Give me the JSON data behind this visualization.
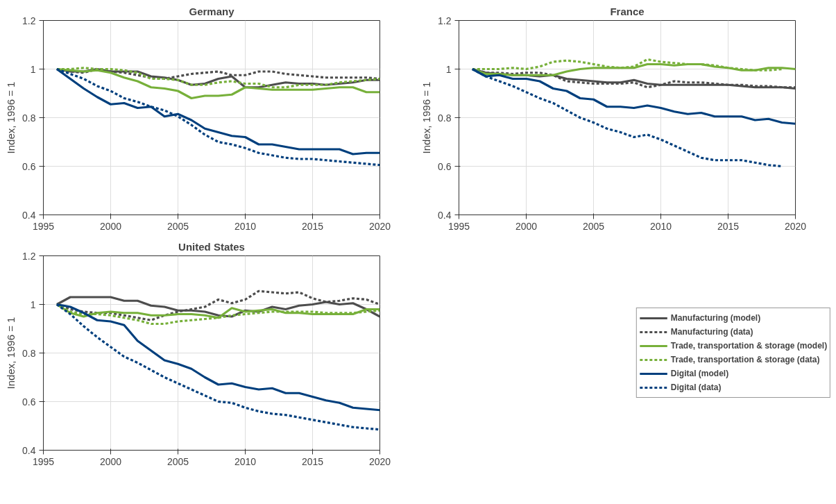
{
  "chart_data": [
    {
      "type": "line",
      "title": "Germany",
      "ylabel": "Index, 1996 = 1",
      "x": [
        1996,
        1997,
        1998,
        1999,
        2000,
        2001,
        2002,
        2003,
        2004,
        2005,
        2006,
        2007,
        2008,
        2009,
        2010,
        2011,
        2012,
        2013,
        2014,
        2015,
        2016,
        2017,
        2018,
        2019,
        2020
      ],
      "xlim": [
        1995,
        2020
      ],
      "ylim": [
        0.4,
        1.2
      ],
      "xticks": [
        1995,
        2000,
        2005,
        2010,
        2015,
        2020
      ],
      "yticks": [
        0.4,
        0.6,
        0.8,
        1,
        1.2
      ],
      "grid": true,
      "series": [
        {
          "color": "#4d4d4d",
          "line_style": "solid",
          "values": [
            1,
            0.99,
            0.99,
            1.0,
            0.99,
            0.99,
            0.99,
            0.97,
            0.965,
            0.955,
            0.935,
            0.94,
            0.96,
            0.97,
            0.925,
            0.925,
            0.935,
            0.945,
            0.94,
            0.94,
            0.935,
            0.94,
            0.945,
            0.955,
            0.955
          ]
        },
        {
          "color": "#4d4d4d",
          "line_style": "dotted",
          "values": [
            1,
            0.99,
            0.985,
            1.0,
            0.99,
            0.985,
            0.975,
            0.965,
            0.96,
            0.97,
            0.98,
            0.985,
            0.99,
            0.975,
            0.975,
            0.99,
            0.99,
            0.98,
            0.975,
            0.97,
            0.965,
            0.965,
            0.965,
            0.965,
            0.96
          ]
        },
        {
          "color": "#77b03a",
          "line_style": "solid",
          "values": [
            1,
            0.995,
            0.99,
            0.995,
            0.985,
            0.965,
            0.95,
            0.925,
            0.92,
            0.91,
            0.88,
            0.89,
            0.89,
            0.895,
            0.925,
            0.92,
            0.915,
            0.915,
            0.915,
            0.915,
            0.92,
            0.925,
            0.925,
            0.905,
            0.905
          ]
        },
        {
          "color": "#77b03a",
          "line_style": "dotted",
          "values": [
            1,
            1.0,
            1.005,
            1.0,
            1.0,
            0.995,
            0.985,
            0.96,
            0.96,
            0.955,
            0.935,
            0.935,
            0.945,
            0.95,
            0.94,
            0.94,
            0.925,
            0.925,
            0.935,
            0.935,
            0.935,
            0.945,
            0.95,
            0.955,
            0.96
          ]
        },
        {
          "color": "#003f7d",
          "line_style": "solid",
          "values": [
            1,
            0.96,
            0.92,
            0.885,
            0.855,
            0.86,
            0.84,
            0.845,
            0.805,
            0.815,
            0.79,
            0.755,
            0.74,
            0.725,
            0.72,
            0.69,
            0.69,
            0.68,
            0.67,
            0.67,
            0.67,
            0.67,
            0.65,
            0.655,
            0.655
          ]
        },
        {
          "color": "#003f7d",
          "line_style": "dotted",
          "values": [
            1,
            0.98,
            0.96,
            0.93,
            0.91,
            0.88,
            0.865,
            0.845,
            0.83,
            0.805,
            0.77,
            0.73,
            0.7,
            0.69,
            0.675,
            0.655,
            0.645,
            0.635,
            0.63,
            0.63,
            0.625,
            0.62,
            0.615,
            0.61,
            0.605
          ]
        }
      ]
    },
    {
      "type": "line",
      "title": "France",
      "ylabel": "Index, 1996 = 1",
      "x": [
        1996,
        1997,
        1998,
        1999,
        2000,
        2001,
        2002,
        2003,
        2004,
        2005,
        2006,
        2007,
        2008,
        2009,
        2010,
        2011,
        2012,
        2013,
        2014,
        2015,
        2016,
        2017,
        2018,
        2019,
        2020
      ],
      "xlim": [
        1995,
        2020
      ],
      "ylim": [
        0.4,
        1.2
      ],
      "xticks": [
        1995,
        2000,
        2005,
        2010,
        2015,
        2020
      ],
      "yticks": [
        0.4,
        0.6,
        0.8,
        1,
        1.2
      ],
      "grid": true,
      "series": [
        {
          "color": "#4d4d4d",
          "line_style": "solid",
          "values": [
            1,
            0.985,
            0.98,
            0.975,
            0.975,
            0.97,
            0.975,
            0.96,
            0.955,
            0.95,
            0.945,
            0.945,
            0.955,
            0.94,
            0.935,
            0.935,
            0.935,
            0.935,
            0.935,
            0.935,
            0.93,
            0.925,
            0.925,
            0.925,
            0.92
          ]
        },
        {
          "color": "#4d4d4d",
          "line_style": "dotted",
          "values": [
            1,
            0.985,
            0.985,
            0.98,
            0.985,
            0.985,
            0.975,
            0.95,
            0.945,
            0.94,
            0.94,
            0.94,
            0.945,
            0.925,
            0.935,
            0.95,
            0.945,
            0.945,
            0.94,
            0.935,
            0.935,
            0.93,
            0.93,
            0.925,
            0.925
          ]
        },
        {
          "color": "#77b03a",
          "line_style": "solid",
          "values": [
            1,
            0.98,
            0.98,
            0.975,
            0.975,
            0.975,
            0.975,
            0.99,
            1.0,
            1.005,
            1.005,
            1.005,
            1.005,
            1.02,
            1.02,
            1.015,
            1.02,
            1.02,
            1.01,
            1.005,
            0.995,
            0.995,
            1.005,
            1.005,
            1.0
          ]
        },
        {
          "color": "#77b03a",
          "line_style": "dotted",
          "values": [
            1,
            1.0,
            1.0,
            1.005,
            1.0,
            1.01,
            1.03,
            1.035,
            1.03,
            1.02,
            1.01,
            1.005,
            1.01,
            1.04,
            1.03,
            1.025,
            1.02,
            1.02,
            1.015,
            1.005,
            1.0,
            0.995,
            0.995,
            1.0,
            null
          ]
        },
        {
          "color": "#003f7d",
          "line_style": "solid",
          "values": [
            1,
            0.97,
            0.975,
            0.96,
            0.96,
            0.95,
            0.92,
            0.91,
            0.88,
            0.875,
            0.845,
            0.845,
            0.84,
            0.85,
            0.84,
            0.825,
            0.815,
            0.82,
            0.805,
            0.805,
            0.805,
            0.79,
            0.795,
            0.78,
            0.775
          ]
        },
        {
          "color": "#003f7d",
          "line_style": "dotted",
          "values": [
            1,
            0.97,
            0.95,
            0.93,
            0.905,
            0.88,
            0.86,
            0.83,
            0.8,
            0.78,
            0.755,
            0.74,
            0.72,
            0.73,
            0.71,
            0.685,
            0.66,
            0.635,
            0.625,
            0.625,
            0.625,
            0.615,
            0.605,
            0.6,
            null
          ]
        }
      ]
    },
    {
      "type": "line",
      "title": "United States",
      "ylabel": "Index, 1996 = 1",
      "x": [
        1996,
        1997,
        1998,
        1999,
        2000,
        2001,
        2002,
        2003,
        2004,
        2005,
        2006,
        2007,
        2008,
        2009,
        2010,
        2011,
        2012,
        2013,
        2014,
        2015,
        2016,
        2017,
        2018,
        2019,
        2020
      ],
      "xlim": [
        1995,
        2020
      ],
      "ylim": [
        0.4,
        1.2
      ],
      "xticks": [
        1995,
        2000,
        2005,
        2010,
        2015,
        2020
      ],
      "yticks": [
        0.4,
        0.6,
        0.8,
        1,
        1.2
      ],
      "grid": true,
      "legend": "right",
      "series": [
        {
          "name": "Manufacturing (model)",
          "color": "#4d4d4d",
          "line_style": "solid",
          "values": [
            1,
            1.03,
            1.03,
            1.03,
            1.03,
            1.015,
            1.015,
            0.995,
            0.99,
            0.975,
            0.975,
            0.97,
            0.955,
            0.95,
            0.975,
            0.97,
            0.99,
            0.98,
            0.995,
            1.0,
            1.01,
            1.0,
            1.005,
            0.98,
            0.95
          ]
        },
        {
          "name": "Manufacturing (data)",
          "color": "#4d4d4d",
          "line_style": "dotted",
          "values": [
            1,
            0.98,
            0.97,
            0.965,
            0.965,
            0.955,
            0.945,
            0.935,
            0.955,
            0.97,
            0.98,
            0.99,
            1.02,
            1.005,
            1.02,
            1.055,
            1.05,
            1.045,
            1.05,
            1.025,
            1.01,
            1.015,
            1.025,
            1.02,
            1.0
          ]
        },
        {
          "name": "Trade, transportation & storage (model)",
          "color": "#77b03a",
          "line_style": "solid",
          "values": [
            1,
            0.965,
            0.95,
            0.965,
            0.97,
            0.965,
            0.965,
            0.955,
            0.955,
            0.96,
            0.96,
            0.955,
            0.945,
            0.985,
            0.97,
            0.975,
            0.98,
            0.965,
            0.965,
            0.96,
            0.96,
            0.96,
            0.96,
            0.98,
            0.98
          ]
        },
        {
          "name": "Trade, transportation & storage (data)",
          "color": "#77b03a",
          "line_style": "dotted",
          "values": [
            1,
            0.97,
            0.96,
            0.96,
            0.955,
            0.945,
            0.935,
            0.92,
            0.92,
            0.93,
            0.935,
            0.94,
            0.945,
            0.955,
            0.96,
            0.965,
            0.97,
            0.97,
            0.97,
            0.97,
            0.965,
            0.965,
            0.965,
            0.97,
            0.975
          ]
        },
        {
          "name": "Digital (model)",
          "color": "#003f7d",
          "line_style": "solid",
          "values": [
            1,
            0.99,
            0.965,
            0.935,
            0.93,
            0.915,
            0.85,
            0.81,
            0.77,
            0.755,
            0.735,
            0.7,
            0.67,
            0.675,
            0.66,
            0.65,
            0.655,
            0.635,
            0.635,
            0.62,
            0.605,
            0.595,
            0.575,
            0.57,
            0.565
          ]
        },
        {
          "name": "Digital (data)",
          "color": "#003f7d",
          "line_style": "dotted",
          "values": [
            1,
            0.96,
            0.91,
            0.865,
            0.825,
            0.785,
            0.76,
            0.73,
            0.7,
            0.675,
            0.65,
            0.625,
            0.6,
            0.595,
            0.575,
            0.56,
            0.55,
            0.545,
            0.535,
            0.525,
            0.515,
            0.505,
            0.495,
            0.49,
            0.485
          ]
        }
      ]
    }
  ]
}
